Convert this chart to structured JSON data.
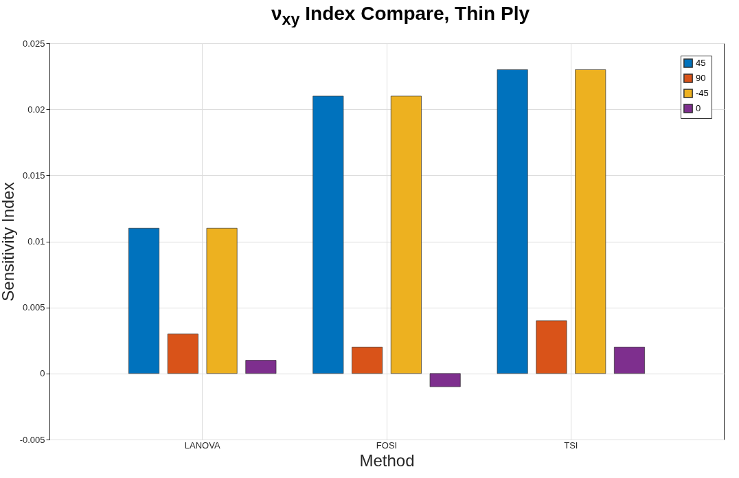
{
  "chart_data": {
    "type": "bar",
    "title": "ν$_{xy}$ Index Compare, Thin Ply",
    "xlabel": "Method",
    "ylabel": "Sensitivity Index",
    "categories": [
      "LANOVA",
      "FOSI",
      "TSI"
    ],
    "series": [
      {
        "name": "45",
        "color": "#0072bd",
        "values": [
          0.011,
          0.021,
          0.023
        ]
      },
      {
        "name": "90",
        "color": "#d95319",
        "values": [
          0.003,
          0.002,
          0.004
        ]
      },
      {
        "name": "-45",
        "color": "#edb120",
        "values": [
          0.011,
          0.021,
          0.023
        ]
      },
      {
        "name": "0",
        "color": "#7e2f8e",
        "values": [
          0.001,
          -0.001,
          0.002
        ]
      }
    ],
    "ylim": [
      -0.005,
      0.025
    ],
    "yticks": [
      -0.005,
      0,
      0.005,
      0.01,
      0.015,
      0.02,
      0.025
    ],
    "grid": true,
    "legend": "top right"
  }
}
